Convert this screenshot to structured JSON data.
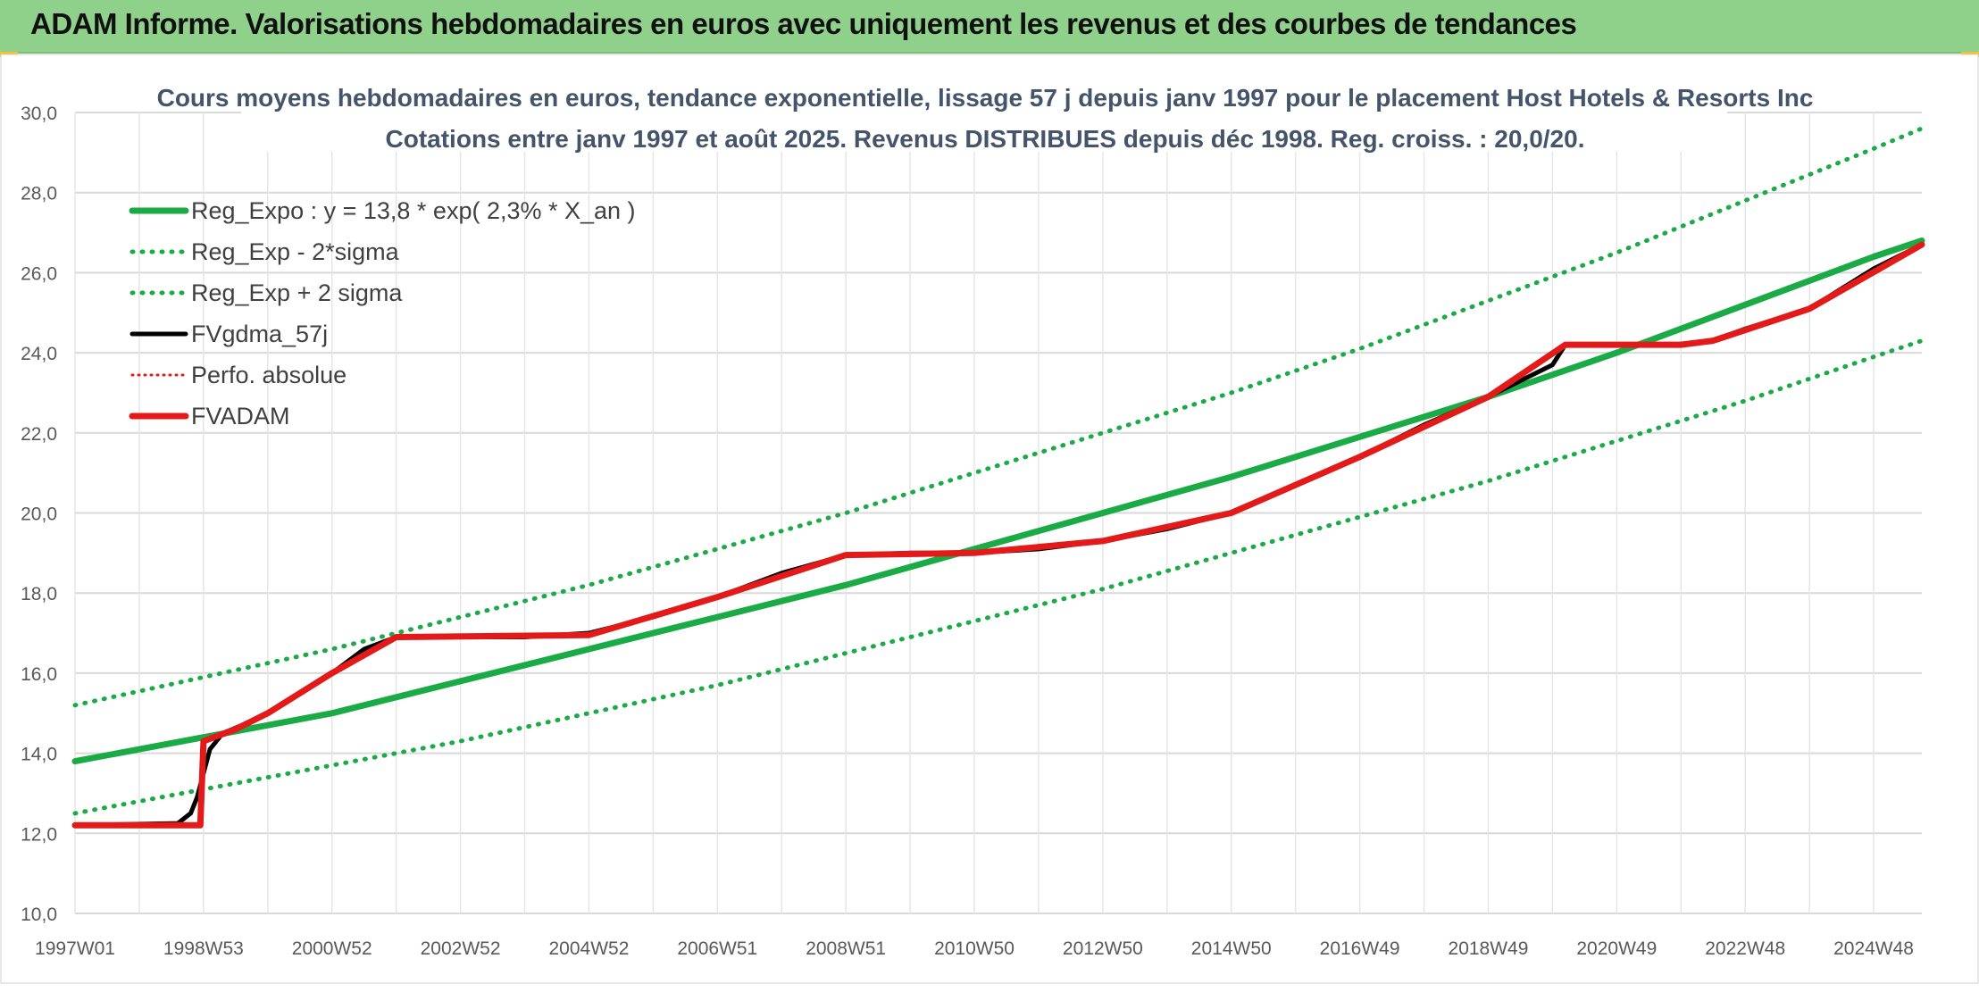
{
  "header": {
    "title": "ADAM Informe. Valorisations hebdomadaires en euros avec uniquement les revenus et des courbes de tendances"
  },
  "colors": {
    "header_bg": "#8fd18a",
    "reg_expo": "#1aab47",
    "sigma": "#1aab47",
    "fvgdma": "#000000",
    "perfo": "#e31a1a",
    "fvadam": "#e31a1a",
    "grid": "#d9d9d9",
    "axis_text": "#595959",
    "title_text": "#44546a"
  },
  "chart_data": {
    "type": "line",
    "title": "Cours moyens hebdomadaires en euros, tendance exponentielle, lissage 57 j depuis janv 1997 pour le placement Host Hotels & Resorts Inc",
    "subtitle": "Cotations entre janv 1997 et août 2025. Revenus DISTRIBUES depuis déc 1998. Reg. croiss. : 20,0/20.",
    "xlabel": "",
    "ylabel": "",
    "ylim": [
      10,
      30
    ],
    "xlim": [
      1997.0,
      2025.75
    ],
    "y_ticks": [
      "30,0",
      "28,0",
      "26,0",
      "24,0",
      "22,0",
      "20,0",
      "18,0",
      "16,0",
      "14,0",
      "12,0",
      "10,0"
    ],
    "x_tick_labels": [
      {
        "label": "1997W01",
        "x": 1997.0
      },
      {
        "label": "1998W53",
        "x": 1999.0
      },
      {
        "label": "2000W52",
        "x": 2001.0
      },
      {
        "label": "2002W52",
        "x": 2003.0
      },
      {
        "label": "2004W52",
        "x": 2005.0
      },
      {
        "label": "2006W51",
        "x": 2007.0
      },
      {
        "label": "2008W51",
        "x": 2009.0
      },
      {
        "label": "2010W50",
        "x": 2011.0
      },
      {
        "label": "2012W50",
        "x": 2013.0
      },
      {
        "label": "2014W50",
        "x": 2015.0
      },
      {
        "label": "2016W49",
        "x": 2017.0
      },
      {
        "label": "2018W49",
        "x": 2019.0
      },
      {
        "label": "2020W49",
        "x": 2021.0
      },
      {
        "label": "2022W48",
        "x": 2023.0
      },
      {
        "label": "2024W48",
        "x": 2025.0
      }
    ],
    "grid": true,
    "legend_position": "top-left",
    "series": [
      {
        "name": "Reg_Expo : y = 13,8 * exp( 2,3% *  X_an )",
        "style": "solid",
        "color": "#1aab47",
        "width": 7,
        "x": [
          1997,
          1999,
          2001,
          2003,
          2005,
          2007,
          2009,
          2011,
          2013,
          2015,
          2017,
          2019,
          2021,
          2023,
          2025,
          2025.75
        ],
        "y": [
          13.8,
          14.4,
          15.0,
          15.8,
          16.6,
          17.4,
          18.2,
          19.1,
          20.0,
          20.9,
          21.9,
          22.9,
          24.0,
          25.2,
          26.4,
          26.8
        ]
      },
      {
        "name": "Reg_Exp - 2*sigma",
        "style": "dotted",
        "color": "#1aab47",
        "width": 5,
        "x": [
          1997,
          1999,
          2001,
          2003,
          2005,
          2007,
          2009,
          2011,
          2013,
          2015,
          2017,
          2019,
          2021,
          2023,
          2025,
          2025.75
        ],
        "y": [
          12.5,
          13.1,
          13.7,
          14.3,
          15.0,
          15.7,
          16.5,
          17.3,
          18.1,
          19.0,
          19.9,
          20.8,
          21.8,
          22.8,
          23.9,
          24.3
        ]
      },
      {
        "name": "Reg_Exp + 2 sigma",
        "style": "dotted",
        "color": "#1aab47",
        "width": 5,
        "x": [
          1997,
          1999,
          2001,
          2003,
          2005,
          2007,
          2009,
          2011,
          2013,
          2015,
          2017,
          2019,
          2021,
          2023,
          2025,
          2025.75
        ],
        "y": [
          15.2,
          15.9,
          16.6,
          17.4,
          18.2,
          19.1,
          20.0,
          21.0,
          22.0,
          23.0,
          24.1,
          25.3,
          26.5,
          27.8,
          29.1,
          29.6
        ]
      },
      {
        "name": "FVgdma_57j",
        "style": "solid",
        "color": "#000000",
        "width": 5,
        "x": [
          1997,
          1998.6,
          1998.8,
          1998.9,
          1999.0,
          1999.1,
          1999.3,
          1999.6,
          2000.0,
          2000.5,
          2001.0,
          2001.5,
          2002.0,
          2003.0,
          2004.0,
          2005.0,
          2006.0,
          2007.0,
          2008.0,
          2009.0,
          2010.0,
          2011.0,
          2012.0,
          2013.0,
          2014.0,
          2015.0,
          2016.0,
          2017.0,
          2018.0,
          2019.0,
          2020.0,
          2020.2,
          2021.0,
          2022.0,
          2022.5,
          2023.0,
          2024.0,
          2024.5,
          2025.0,
          2025.75
        ],
        "y": [
          12.2,
          12.25,
          12.5,
          12.9,
          13.5,
          14.1,
          14.5,
          14.7,
          15.0,
          15.5,
          16.0,
          16.6,
          16.9,
          16.9,
          16.9,
          17.0,
          17.4,
          17.9,
          18.5,
          18.95,
          19.0,
          19.0,
          19.1,
          19.3,
          19.6,
          20.0,
          20.7,
          21.4,
          22.2,
          22.9,
          23.7,
          24.2,
          24.2,
          24.2,
          24.3,
          24.6,
          25.1,
          25.6,
          26.1,
          26.7
        ]
      },
      {
        "name": "Perfo. absolue",
        "style": "dotted",
        "color": "#e31a1a",
        "width": 3,
        "x": [
          1997,
          1998.95,
          1999.0,
          1999.5,
          2000.0,
          2001.0,
          2002.0,
          2005.0,
          2007.0,
          2009.0,
          2011.0,
          2013.0,
          2015.0,
          2017.0,
          2019.0,
          2020.2,
          2022.0,
          2022.5,
          2024.0,
          2025.75
        ],
        "y": [
          12.2,
          12.2,
          14.3,
          14.6,
          15.0,
          16.0,
          16.9,
          16.95,
          17.9,
          18.95,
          19.0,
          19.3,
          20.0,
          21.4,
          22.9,
          24.2,
          24.2,
          24.3,
          25.1,
          26.7
        ]
      },
      {
        "name": "FVADAM",
        "style": "solid",
        "color": "#e31a1a",
        "width": 7,
        "x": [
          1997,
          1998.95,
          1999.0,
          1999.5,
          2000.0,
          2001.0,
          2002.0,
          2005.0,
          2007.0,
          2009.0,
          2011.0,
          2013.0,
          2015.0,
          2017.0,
          2019.0,
          2020.2,
          2022.0,
          2022.5,
          2024.0,
          2025.75
        ],
        "y": [
          12.2,
          12.2,
          14.3,
          14.6,
          15.0,
          16.0,
          16.9,
          16.95,
          17.9,
          18.95,
          19.0,
          19.3,
          20.0,
          21.4,
          22.9,
          24.2,
          24.2,
          24.3,
          25.1,
          26.7
        ]
      }
    ]
  }
}
